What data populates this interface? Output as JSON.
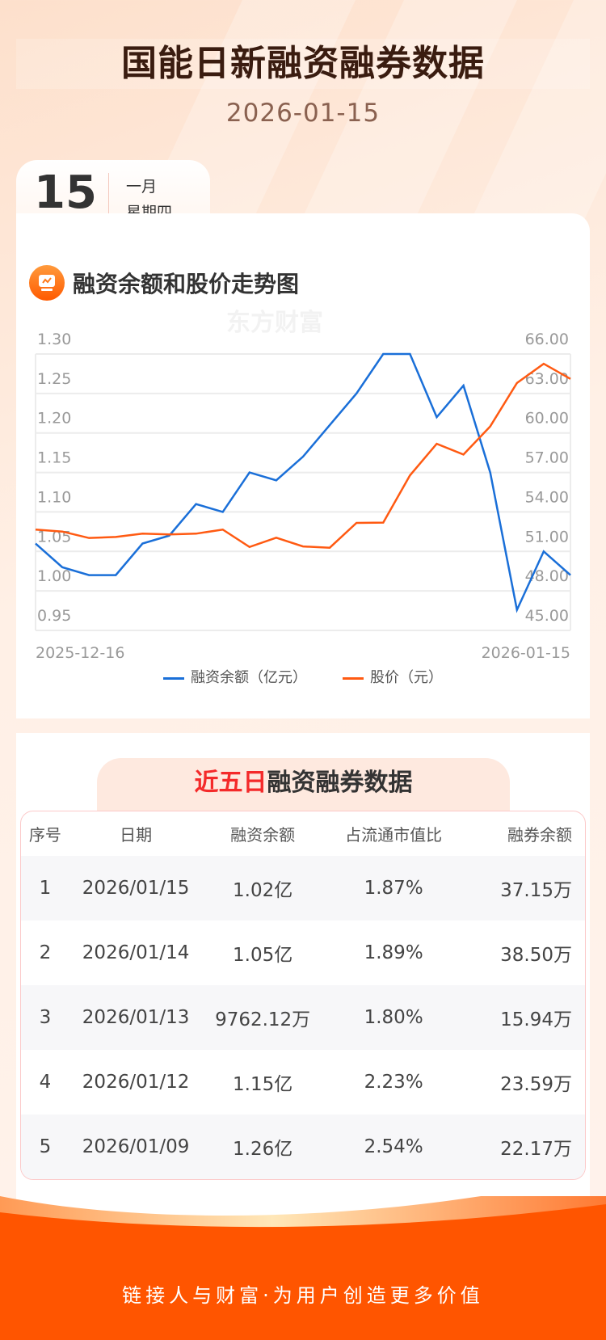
{
  "header": {
    "title": "国能日新融资融券数据",
    "date": "2026-01-15"
  },
  "date_card": {
    "day": "15",
    "month": "一月",
    "weekday": "星期四"
  },
  "chart_section": {
    "title": "融资余额和股价走势图",
    "watermark": "东方财富"
  },
  "chart_data": {
    "type": "line",
    "x_start_label": "2025-12-16",
    "x_end_label": "2026-01-15",
    "x": [
      "2025-12-16",
      "2025-12-17",
      "2025-12-18",
      "2025-12-19",
      "2025-12-22",
      "2025-12-23",
      "2025-12-24",
      "2025-12-25",
      "2025-12-26",
      "2025-12-29",
      "2025-12-30",
      "2025-12-31",
      "2026-01-05",
      "2026-01-06",
      "2026-01-07",
      "2026-01-08",
      "2026-01-09",
      "2026-01-12",
      "2026-01-13",
      "2026-01-14",
      "2026-01-15"
    ],
    "left_axis": {
      "ticks": [
        "1.30",
        "1.25",
        "1.20",
        "1.15",
        "1.10",
        "1.05",
        "1.00",
        "0.95"
      ],
      "range": [
        0.95,
        1.3
      ]
    },
    "right_axis": {
      "ticks": [
        "66.00",
        "63.00",
        "60.00",
        "57.00",
        "54.00",
        "51.00",
        "48.00",
        "45.00"
      ],
      "range": [
        45,
        66
      ]
    },
    "series": [
      {
        "name": "融资余额（亿元）",
        "axis": "left",
        "color": "#1a6fd8",
        "values": [
          1.06,
          1.03,
          1.02,
          1.02,
          1.06,
          1.07,
          1.11,
          1.1,
          1.15,
          1.14,
          1.17,
          1.21,
          1.25,
          1.3,
          1.3,
          1.22,
          1.26,
          1.15,
          0.976,
          1.05,
          1.02
        ]
      },
      {
        "name": "股价（元）",
        "axis": "right",
        "color": "#ff5a12",
        "values": [
          52.66,
          52.51,
          52.02,
          52.1,
          52.35,
          52.29,
          52.35,
          52.66,
          51.34,
          52.04,
          51.38,
          51.28,
          53.17,
          53.19,
          56.78,
          59.18,
          58.36,
          60.5,
          63.8,
          65.26,
          64.11
        ]
      }
    ]
  },
  "table_section": {
    "title_highlight": "近五日",
    "title_rest": "融资融券数据",
    "columns": [
      "序号",
      "日期",
      "融资余额",
      "占流通市值比",
      "融券余额"
    ],
    "rows": [
      [
        "1",
        "2026/01/15",
        "1.02亿",
        "1.87%",
        "37.15万"
      ],
      [
        "2",
        "2026/01/14",
        "1.05亿",
        "1.89%",
        "38.50万"
      ],
      [
        "3",
        "2026/01/13",
        "9762.12万",
        "1.80%",
        "15.94万"
      ],
      [
        "4",
        "2026/01/12",
        "1.15亿",
        "2.23%",
        "23.59万"
      ],
      [
        "5",
        "2026/01/09",
        "1.26亿",
        "2.54%",
        "22.17万"
      ]
    ]
  },
  "footer": {
    "slogan": "链接人与财富·为用户创造更多价值"
  }
}
